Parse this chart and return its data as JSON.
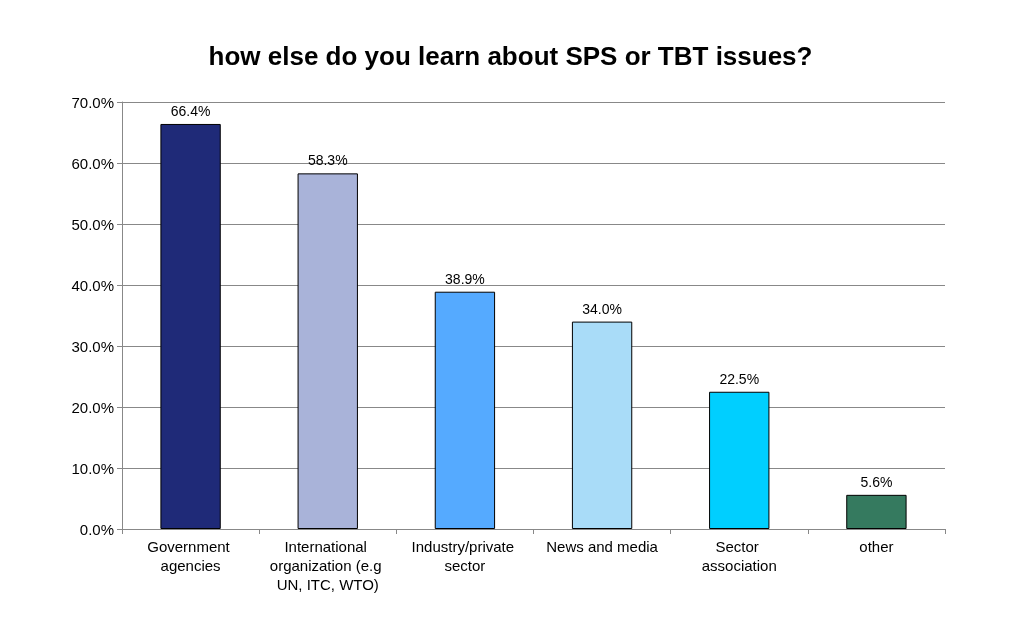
{
  "chart_data": {
    "type": "bar",
    "title": "how else do you learn about SPS or TBT issues?",
    "categories": [
      "Government agencies",
      "International organization (e.g UN, ITC, WTO)",
      "Industry/private sector",
      "News and media",
      "Sector association",
      "other"
    ],
    "values": [
      66.4,
      58.3,
      38.9,
      34.0,
      22.5,
      5.6
    ],
    "colors": [
      "#1f2a78",
      "#a9b3d9",
      "#55aaff",
      "#a9dcf8",
      "#00cfff",
      "#357a5f"
    ],
    "value_labels": [
      "66.4%",
      "58.3%",
      "38.9%",
      "34.0%",
      "22.5%",
      "5.6%"
    ],
    "ylim": [
      0,
      70
    ],
    "yticks": [
      {
        "value": 0,
        "label": "0.0%"
      },
      {
        "value": 10,
        "label": "10.0%"
      },
      {
        "value": 20,
        "label": "20.0%"
      },
      {
        "value": 30,
        "label": "30.0%"
      },
      {
        "value": 40,
        "label": "40.0%"
      },
      {
        "value": 50,
        "label": "50.0%"
      },
      {
        "value": 60,
        "label": "60.0%"
      },
      {
        "value": 70,
        "label": "70.0%"
      }
    ],
    "grid": "y"
  }
}
